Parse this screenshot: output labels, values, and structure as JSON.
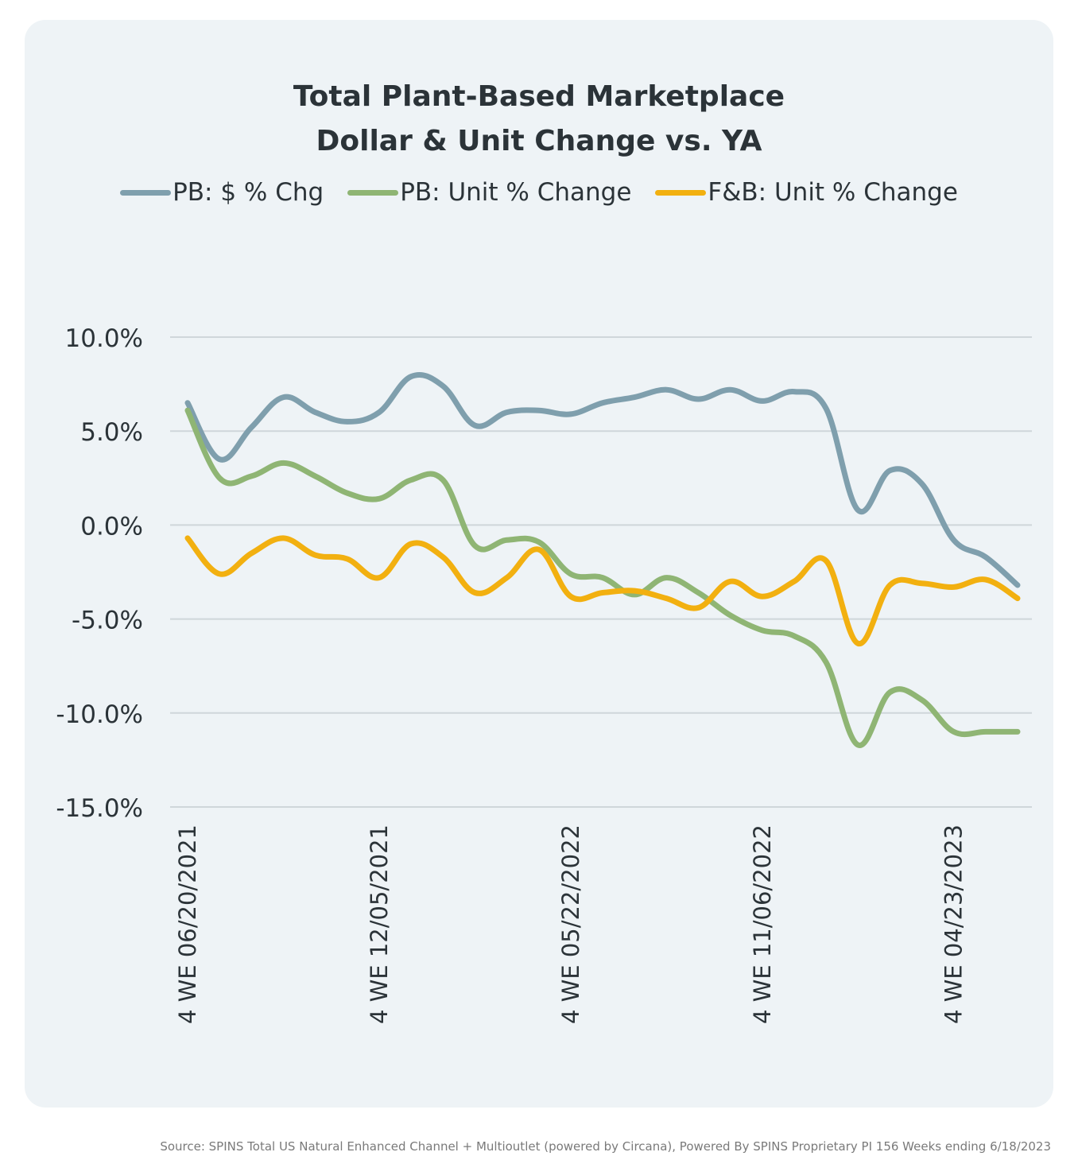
{
  "chart_data": {
    "type": "line",
    "title_lines": [
      "Total Plant-Based Marketplace",
      "Dollar & Unit Change vs. YA"
    ],
    "xlabel": "",
    "ylabel": "",
    "ylim": [
      -15,
      10
    ],
    "yticks": [
      10,
      5,
      0,
      -5,
      -10,
      -15
    ],
    "ytick_labels": [
      "10.0%",
      "5.0%",
      "0.0%",
      "-5.0%",
      "-10.0%",
      "-15.0%"
    ],
    "grid": "horizontal",
    "legend_position": "top",
    "x_tick_labels": [
      "4 WE 06/20/2021",
      "4 WE 12/05/2021",
      "4 WE 05/22/2022",
      "4 WE 11/06/2022",
      "4 WE 04/23/2023"
    ],
    "x_tick_indices": [
      0,
      6,
      12,
      18,
      24
    ],
    "series": [
      {
        "name": "PB: $ % Chg",
        "color": "#7f9fad",
        "values": [
          6.5,
          3.5,
          5.2,
          6.8,
          6.0,
          5.5,
          6.0,
          7.9,
          7.4,
          5.3,
          6.0,
          6.1,
          5.9,
          6.5,
          6.8,
          7.2,
          6.7,
          7.2,
          6.6,
          7.1,
          6.2,
          0.8,
          2.9,
          2.2,
          -0.8,
          -1.7,
          -3.2
        ]
      },
      {
        "name": "PB: Unit % Change",
        "color": "#8fb574",
        "values": [
          6.1,
          2.5,
          2.6,
          3.3,
          2.6,
          1.7,
          1.4,
          2.4,
          2.4,
          -1.1,
          -0.8,
          -0.9,
          -2.6,
          -2.8,
          -3.7,
          -2.8,
          -3.6,
          -4.8,
          -5.6,
          -5.9,
          -7.3,
          -11.7,
          -8.9,
          -9.3,
          -11.0,
          -11.0,
          -11.0
        ]
      },
      {
        "name": "F&B: Unit % Change",
        "color": "#f2b010",
        "values": [
          -0.7,
          -2.6,
          -1.5,
          -0.7,
          -1.6,
          -1.8,
          -2.8,
          -1.0,
          -1.7,
          -3.6,
          -2.8,
          -1.3,
          -3.8,
          -3.6,
          -3.5,
          -3.9,
          -4.4,
          -3.0,
          -3.8,
          -3.0,
          -1.9,
          -6.3,
          -3.2,
          -3.1,
          -3.3,
          -2.9,
          -3.9
        ]
      }
    ]
  },
  "source_text": "Source: SPINS Total US Natural Enhanced Channel + Multioutlet (powered by Circana), Powered By SPINS Proprietary PI 156 Weeks ending 6/18/2023"
}
